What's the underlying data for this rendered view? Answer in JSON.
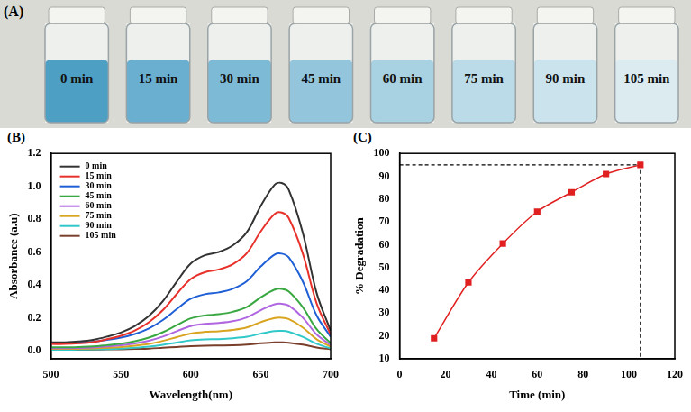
{
  "photo_panel": {
    "label": "(A)",
    "captions": [
      "0 min",
      "15 min",
      "30 min",
      "45 min",
      "60 min",
      "75 min",
      "90 min",
      "105 min"
    ],
    "colors": [
      "#4e9fc4",
      "#6aafd0",
      "#7dbad6",
      "#93c6dc",
      "#a8d1e2",
      "#badbe7",
      "#cbe3ec",
      "#dbebf0"
    ]
  },
  "chart_data": [
    {
      "type": "line",
      "label": "(B)",
      "x_label": "Wavelength(nm)",
      "y_label": "Absorbance (a.u)",
      "x": [
        500,
        510,
        520,
        530,
        540,
        550,
        560,
        570,
        580,
        590,
        600,
        610,
        620,
        630,
        640,
        650,
        660,
        665,
        670,
        680,
        690,
        700
      ],
      "series": [
        {
          "name": "0 min",
          "color": "#333333",
          "values": [
            0.05,
            0.05,
            0.055,
            0.065,
            0.085,
            0.11,
            0.15,
            0.21,
            0.3,
            0.42,
            0.53,
            0.58,
            0.6,
            0.64,
            0.72,
            0.88,
            1.01,
            1.02,
            0.98,
            0.72,
            0.35,
            0.12
          ]
        },
        {
          "name": "15 min",
          "color": "#e8312a",
          "values": [
            0.04,
            0.04,
            0.044,
            0.052,
            0.069,
            0.09,
            0.122,
            0.172,
            0.246,
            0.345,
            0.436,
            0.477,
            0.494,
            0.526,
            0.593,
            0.725,
            0.832,
            0.84,
            0.807,
            0.593,
            0.287,
            0.098
          ]
        },
        {
          "name": "30 min",
          "color": "#1f5fd6",
          "values": [
            0.045,
            0.045,
            0.048,
            0.053,
            0.065,
            0.079,
            0.101,
            0.135,
            0.186,
            0.253,
            0.315,
            0.343,
            0.354,
            0.376,
            0.422,
            0.512,
            0.585,
            0.59,
            0.568,
            0.422,
            0.213,
            0.084
          ]
        },
        {
          "name": "45 min",
          "color": "#3aa842",
          "values": [
            0.02,
            0.02,
            0.022,
            0.025,
            0.033,
            0.042,
            0.057,
            0.079,
            0.112,
            0.155,
            0.196,
            0.214,
            0.221,
            0.236,
            0.265,
            0.324,
            0.371,
            0.375,
            0.36,
            0.265,
            0.13,
            0.046
          ]
        },
        {
          "name": "60 min",
          "color": "#b066e0",
          "values": [
            0.015,
            0.015,
            0.016,
            0.019,
            0.025,
            0.032,
            0.043,
            0.06,
            0.085,
            0.118,
            0.149,
            0.162,
            0.168,
            0.179,
            0.202,
            0.246,
            0.282,
            0.285,
            0.274,
            0.202,
            0.098,
            0.034
          ]
        },
        {
          "name": "75 min",
          "color": "#d9a520",
          "values": [
            0.01,
            0.01,
            0.011,
            0.013,
            0.017,
            0.022,
            0.03,
            0.041,
            0.059,
            0.082,
            0.104,
            0.114,
            0.118,
            0.126,
            0.141,
            0.173,
            0.198,
            0.2,
            0.192,
            0.141,
            0.069,
            0.024
          ]
        },
        {
          "name": "90 min",
          "color": "#30c8c8",
          "values": [
            0.005,
            0.005,
            0.006,
            0.007,
            0.009,
            0.012,
            0.017,
            0.024,
            0.035,
            0.049,
            0.062,
            0.068,
            0.07,
            0.075,
            0.084,
            0.103,
            0.119,
            0.12,
            0.115,
            0.084,
            0.041,
            0.013
          ]
        },
        {
          "name": "105 min",
          "color": "#7a3f2a",
          "values": [
            0.005,
            0.005,
            0.005,
            0.006,
            0.007,
            0.008,
            0.01,
            0.012,
            0.017,
            0.022,
            0.027,
            0.03,
            0.031,
            0.032,
            0.036,
            0.044,
            0.05,
            0.05,
            0.048,
            0.036,
            0.019,
            0.008
          ]
        }
      ],
      "xlim": [
        500,
        700
      ],
      "xticks": [
        500,
        550,
        600,
        650,
        700
      ],
      "ylim": [
        -0.05,
        1.2
      ],
      "yticks": [
        {
          "value": 0,
          "label": "0.0"
        },
        {
          "value": 0.2,
          "label": "0.2"
        },
        {
          "value": 0.4,
          "label": "0.4"
        },
        {
          "value": 0.6,
          "label": "0.6"
        },
        {
          "value": 0.8,
          "label": "0.8"
        },
        {
          "value": 1.0,
          "label": "1.0"
        },
        {
          "value": 1.2,
          "label": "1.2"
        }
      ],
      "grid": false,
      "legend": "upper left"
    },
    {
      "type": "line",
      "label": "(C)",
      "x_label": "Time (min)",
      "y_label": "% Degradation",
      "x": [
        15,
        30,
        45,
        60,
        75,
        90,
        105
      ],
      "values": [
        19,
        43.5,
        60.5,
        74.5,
        83,
        91,
        95
      ],
      "color": "#e02020",
      "marker": "square",
      "guide_point": {
        "x": 105,
        "y": 95
      },
      "xlim": [
        0,
        120
      ],
      "xticks": [
        0,
        20,
        40,
        60,
        80,
        100,
        120
      ],
      "ylim": [
        10,
        100
      ],
      "yticks": [
        10,
        20,
        30,
        40,
        50,
        60,
        70,
        80,
        90,
        100
      ],
      "grid": false
    }
  ]
}
